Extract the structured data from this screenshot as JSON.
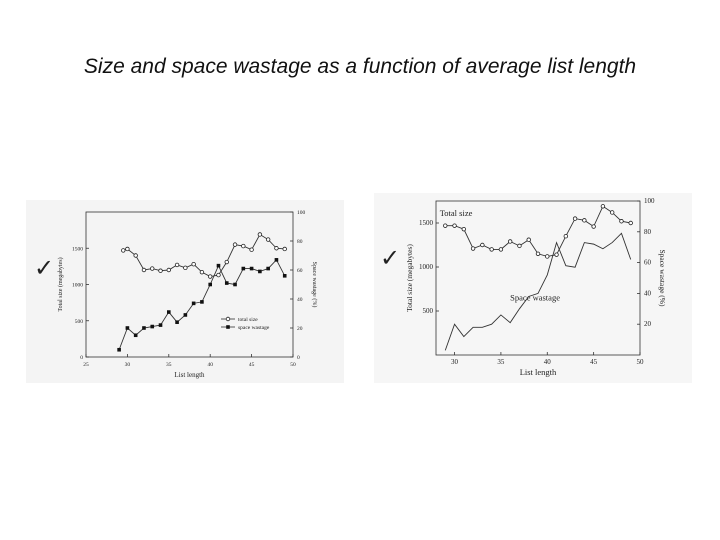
{
  "slide": {
    "title": "Size and space wastage as a  function of average list length"
  },
  "chart_data": [
    {
      "type": "line",
      "xlabel": "List length",
      "ylabel_left": "Total size (megabytes)",
      "ylabel_right": "Space wastage (%)",
      "xlim": [
        25,
        50
      ],
      "xticks": [
        "25",
        "30",
        "35",
        "40",
        "45",
        "50"
      ],
      "ylim_left": [
        0,
        2000
      ],
      "yticks_left": [
        "0",
        "500",
        "1000",
        "1500"
      ],
      "ylim_right": [
        0,
        100
      ],
      "yticks_right": [
        "0",
        "20",
        "40",
        "60",
        "80",
        "100"
      ],
      "legend_position": "bottom-right",
      "series": [
        {
          "name": "total size",
          "axis": "left",
          "marker": "open-circle",
          "x": [
            29.5,
            30,
            31,
            32,
            33,
            34,
            35,
            36,
            37,
            38,
            39,
            40,
            41,
            42,
            43,
            44,
            45,
            46,
            47,
            48,
            49
          ],
          "y": [
            1470,
            1490,
            1400,
            1200,
            1220,
            1190,
            1200,
            1270,
            1230,
            1280,
            1170,
            1110,
            1130,
            1310,
            1550,
            1530,
            1480,
            1690,
            1620,
            1500,
            1490
          ]
        },
        {
          "name": "space wastage",
          "axis": "right",
          "marker": "filled-square",
          "x": [
            29,
            30,
            31,
            32,
            33,
            34,
            35,
            36,
            37,
            38,
            39,
            40,
            41,
            42,
            43,
            44,
            45,
            46,
            47,
            48,
            49
          ],
          "y": [
            5,
            20,
            15,
            20,
            21,
            22,
            31,
            24,
            29,
            37,
            38,
            50,
            63,
            51,
            50,
            61,
            61,
            59,
            61,
            67,
            56
          ]
        }
      ]
    },
    {
      "type": "line",
      "xlabel": "List length",
      "ylabel_left": "Total size (megabytes)",
      "ylabel_right": "Space wastage (%)",
      "xlim": [
        28,
        50
      ],
      "xticks": [
        "30",
        "35",
        "40",
        "45",
        "50"
      ],
      "ylim_left": [
        0,
        1750
      ],
      "yticks_left": [
        "500",
        "1000",
        "1500"
      ],
      "ylim_right": [
        0,
        100
      ],
      "yticks_right": [
        "20",
        "40",
        "60",
        "80",
        "100"
      ],
      "annotations": [
        "Total size",
        "Space wastage"
      ],
      "series": [
        {
          "name": "Total size",
          "axis": "left",
          "marker": "open-circle",
          "x": [
            29,
            30,
            31,
            32,
            33,
            34,
            35,
            36,
            37,
            38,
            39,
            40,
            41,
            42,
            43,
            44,
            45,
            46,
            47,
            48,
            49
          ],
          "y": [
            1470,
            1470,
            1430,
            1210,
            1250,
            1200,
            1200,
            1290,
            1240,
            1310,
            1150,
            1120,
            1140,
            1350,
            1550,
            1530,
            1460,
            1690,
            1620,
            1520,
            1500
          ]
        },
        {
          "name": "Space wastage",
          "axis": "right",
          "marker": "none",
          "x": [
            29,
            30,
            31,
            32,
            33,
            34,
            35,
            36,
            37,
            38,
            39,
            40,
            41,
            42,
            43,
            44,
            45,
            46,
            47,
            48,
            49
          ],
          "y": [
            3,
            20,
            12,
            18,
            18,
            20,
            26,
            21,
            30,
            38,
            40,
            52,
            73,
            58,
            57,
            73,
            72,
            69,
            73,
            79,
            62
          ]
        }
      ]
    }
  ]
}
